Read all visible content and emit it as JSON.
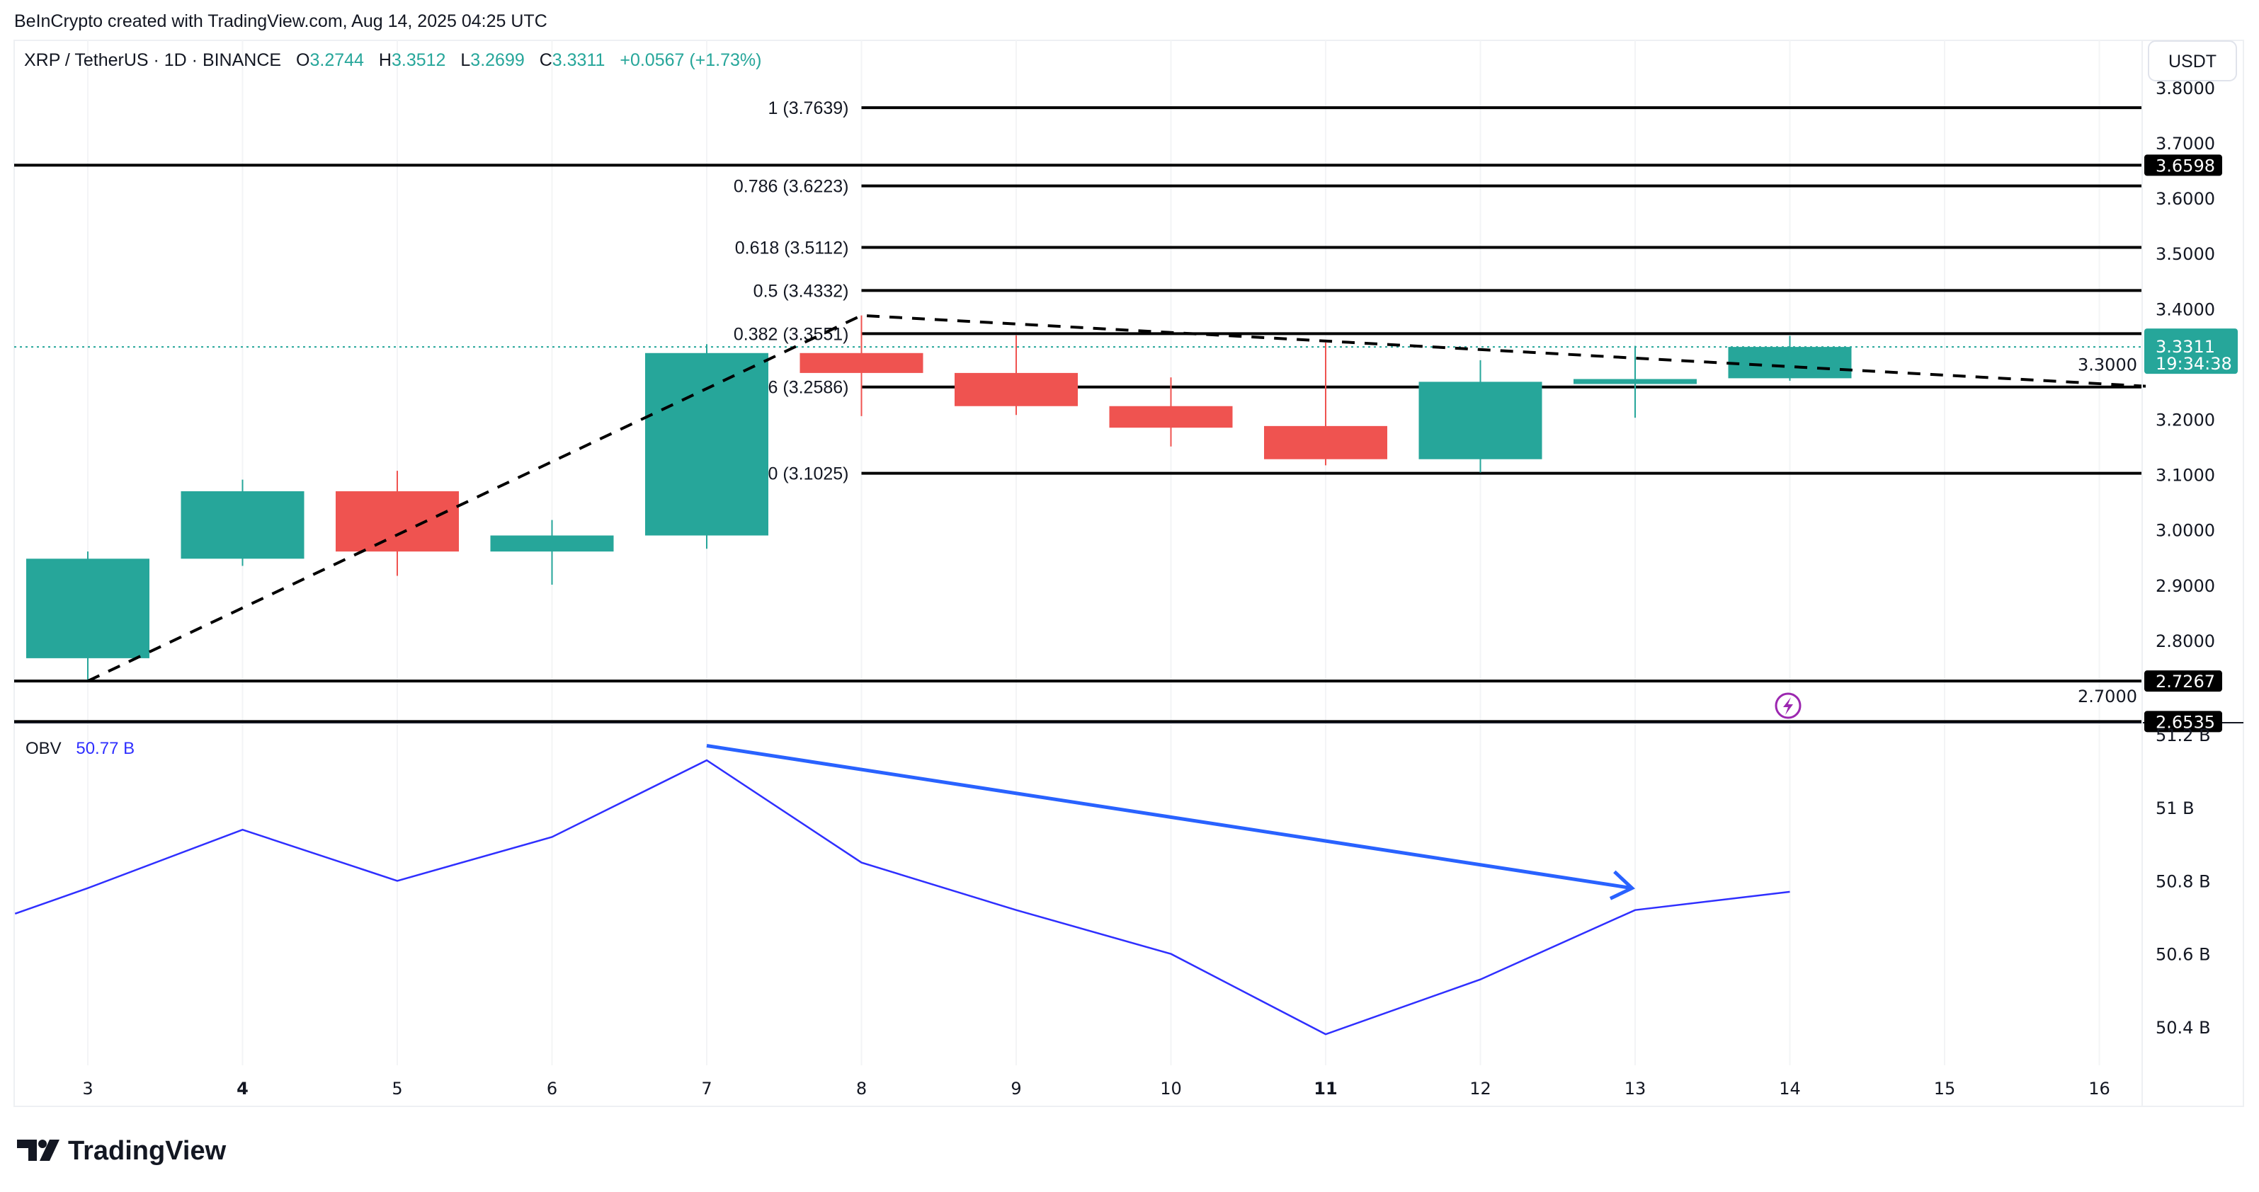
{
  "header": {
    "credit": "BeInCrypto created with TradingView.com, Aug 14, 2025 04:25 UTC"
  },
  "legend": {
    "symbol": "XRP / TetherUS · 1D · BINANCE",
    "o_label": "O",
    "o": "3.2744",
    "h_label": "H",
    "h": "3.3512",
    "l_label": "L",
    "l": "3.2699",
    "c_label": "C",
    "c": "3.3311",
    "change": "+0.0567 (+1.73%)"
  },
  "currency_button": "USDT",
  "price_badge": {
    "price": "3.3311",
    "countdown": "19:34:38"
  },
  "obv_legend": {
    "label": "OBV",
    "value": "50.77 B"
  },
  "logo": "TradingView",
  "colors": {
    "up": "#26a69a",
    "down": "#ef5350",
    "obv": "#2f2fff",
    "arrow": "#2962ff",
    "alert": "#9c27b0"
  },
  "chart_data": [
    {
      "type": "candlestick",
      "ylim": [
        2.62,
        3.82
      ],
      "xlim": [
        2.53,
        16.3
      ],
      "y_ticks": [
        "3.8000",
        "3.7000",
        "3.6000",
        "3.5000",
        "3.4000",
        "3.3000",
        "3.2000",
        "3.1000",
        "3.0000",
        "2.9000",
        "2.8000",
        "2.7000"
      ],
      "x_ticks": [
        {
          "label": "3",
          "v": 3,
          "bold": false
        },
        {
          "label": "4",
          "v": 4,
          "bold": true
        },
        {
          "label": "5",
          "v": 5,
          "bold": false
        },
        {
          "label": "6",
          "v": 6,
          "bold": false
        },
        {
          "label": "7",
          "v": 7,
          "bold": false
        },
        {
          "label": "8",
          "v": 8,
          "bold": false
        },
        {
          "label": "9",
          "v": 9,
          "bold": false
        },
        {
          "label": "10",
          "v": 10,
          "bold": false
        },
        {
          "label": "11",
          "v": 11,
          "bold": true
        },
        {
          "label": "12",
          "v": 12,
          "bold": false
        },
        {
          "label": "13",
          "v": 13,
          "bold": false
        },
        {
          "label": "14",
          "v": 14,
          "bold": false
        },
        {
          "label": "15",
          "v": 15,
          "bold": false
        },
        {
          "label": "16",
          "v": 16,
          "bold": false
        }
      ],
      "candles": [
        {
          "day": 3,
          "o": 2.768,
          "h": 2.961,
          "l": 2.729,
          "c": 2.948
        },
        {
          "day": 4,
          "o": 2.948,
          "h": 3.091,
          "l": 2.935,
          "c": 3.07
        },
        {
          "day": 5,
          "o": 3.07,
          "h": 3.107,
          "l": 2.917,
          "c": 2.961
        },
        {
          "day": 6,
          "o": 2.961,
          "h": 3.018,
          "l": 2.901,
          "c": 2.99
        },
        {
          "day": 7,
          "o": 2.99,
          "h": 3.336,
          "l": 2.966,
          "c": 3.32
        },
        {
          "day": 8,
          "o": 3.32,
          "h": 3.388,
          "l": 3.206,
          "c": 3.284
        },
        {
          "day": 9,
          "o": 3.284,
          "h": 3.352,
          "l": 3.208,
          "c": 3.224
        },
        {
          "day": 10,
          "o": 3.224,
          "h": 3.276,
          "l": 3.151,
          "c": 3.185
        },
        {
          "day": 11,
          "o": 3.188,
          "h": 3.339,
          "l": 3.117,
          "c": 3.128
        },
        {
          "day": 12,
          "o": 3.128,
          "h": 3.307,
          "l": 3.104,
          "c": 3.268
        },
        {
          "day": 13,
          "o": 3.264,
          "h": 3.333,
          "l": 3.203,
          "c": 3.273
        },
        {
          "day": 14,
          "o": 3.2744,
          "h": 3.3512,
          "l": 3.2699,
          "c": 3.3311
        }
      ],
      "fib_levels": [
        {
          "label": "1 (3.7639)",
          "v": 3.7639
        },
        {
          "label": "0.786 (3.6223)",
          "v": 3.6223
        },
        {
          "label": "0.618 (3.5112)",
          "v": 3.5112
        },
        {
          "label": "0.5 (3.4332)",
          "v": 3.4332
        },
        {
          "label": "0.382 (3.3551)",
          "v": 3.3551
        },
        {
          "label": "0.236 (3.2586)",
          "v": 3.2586
        },
        {
          "label": "0 (3.1025)",
          "v": 3.1025
        }
      ],
      "horizontal_lines": [
        {
          "label": "3.6598",
          "v": 3.6598
        },
        {
          "label": "2.7267",
          "v": 2.7267
        },
        {
          "label": "2.6535",
          "v": 2.6535
        }
      ],
      "trend_line": [
        [
          3,
          2.7267
        ],
        [
          8,
          3.388
        ],
        [
          16.3,
          3.26
        ]
      ],
      "last_price": 3.3311
    },
    {
      "type": "line",
      "series": [
        {
          "name": "OBV",
          "x": [
            2.53,
            3,
            4,
            5,
            6,
            7,
            8,
            9,
            10,
            11,
            12,
            13,
            14
          ],
          "y": [
            50.71,
            50.78,
            50.94,
            50.8,
            50.92,
            51.13,
            50.85,
            50.72,
            50.6,
            50.38,
            50.53,
            50.72,
            50.77
          ]
        }
      ],
      "unit": "B",
      "ylim": [
        50.28,
        51.2
      ],
      "y_ticks": [
        {
          "label": "51.2 B",
          "v": 51.2
        },
        {
          "label": "51 B",
          "v": 51.0
        },
        {
          "label": "50.8 B",
          "v": 50.8
        },
        {
          "label": "50.6 B",
          "v": 50.6
        },
        {
          "label": "50.4 B",
          "v": 50.4
        }
      ],
      "divergence_arrow": [
        [
          7,
          51.17
        ],
        [
          12.98,
          50.78
        ]
      ]
    }
  ]
}
